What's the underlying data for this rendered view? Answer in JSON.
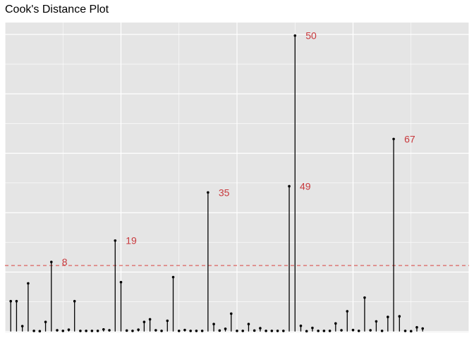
{
  "chart_data": {
    "type": "lollipop",
    "title": "Cook's Distance Plot",
    "xlabel": "",
    "ylabel": "",
    "x": [
      1,
      2,
      3,
      4,
      5,
      6,
      7,
      8,
      9,
      10,
      11,
      12,
      13,
      14,
      15,
      16,
      17,
      18,
      19,
      20,
      21,
      22,
      23,
      24,
      25,
      26,
      27,
      28,
      29,
      30,
      31,
      32,
      33,
      34,
      35,
      36,
      37,
      38,
      39,
      40,
      41,
      42,
      43,
      44,
      45,
      46,
      47,
      48,
      49,
      50,
      51,
      52,
      53,
      54,
      55,
      56,
      57,
      58,
      59,
      60,
      61,
      62,
      63,
      64,
      65,
      66,
      67,
      68,
      69,
      70,
      71,
      72
    ],
    "values": [
      0.0102,
      0.0102,
      0.0018,
      0.0162,
      0.0002,
      0.0001,
      0.0032,
      0.0234,
      0.0004,
      0.0002,
      0.0006,
      0.0102,
      0.0002,
      0.0002,
      0.0002,
      0.0002,
      0.0007,
      0.0004,
      0.0306,
      0.0166,
      0.0003,
      0.0002,
      0.0006,
      0.0032,
      0.0041,
      0.0004,
      0.0002,
      0.0036,
      0.0183,
      0.0002,
      0.0005,
      0.0002,
      0.0002,
      0.0002,
      0.0468,
      0.0025,
      0.0003,
      0.0009,
      0.006,
      0.0002,
      0.0002,
      0.0025,
      0.0003,
      0.0011,
      0.0002,
      0.0002,
      0.0002,
      0.0002,
      0.0489,
      0.0996,
      0.0019,
      0.0001,
      0.0012,
      0.0002,
      0.0002,
      0.0002,
      0.0027,
      0.0004,
      0.0068,
      0.0005,
      0.0002,
      0.0114,
      0.0004,
      0.0034,
      0.0002,
      0.0049,
      0.0648,
      0.0051,
      0.0002,
      0.0001,
      0.0014,
      0.001
    ],
    "threshold": 0.0222,
    "labeled_points": [
      {
        "x": 8,
        "label": "8"
      },
      {
        "x": 19,
        "label": "19"
      },
      {
        "x": 35,
        "label": "35"
      },
      {
        "x": 49,
        "label": "49"
      },
      {
        "x": 50,
        "label": "50"
      },
      {
        "x": 67,
        "label": "67"
      }
    ],
    "ylim": [
      -0.0003,
      0.104
    ],
    "xlim": [
      0,
      80
    ],
    "grid": true,
    "colors": {
      "panel": "#e5e5e5",
      "grid": "#ffffff",
      "stem": "#000000",
      "label": "#c8383c",
      "threshold": "#d9534f"
    }
  }
}
